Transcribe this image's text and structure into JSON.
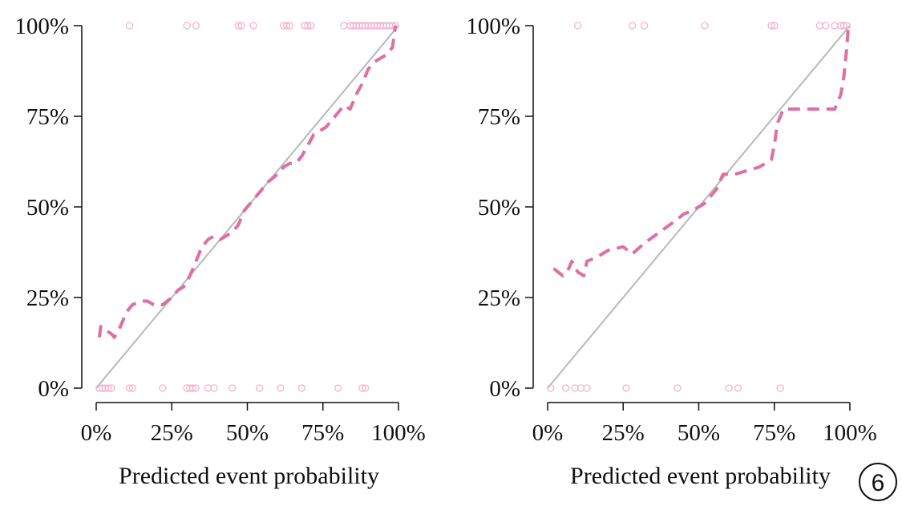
{
  "chart_data": [
    {
      "type": "line",
      "title": "",
      "xlabel": "Predicted event probability",
      "ylabel": "",
      "xlim": [
        0,
        100
      ],
      "ylim": [
        0,
        100
      ],
      "x_ticks": [
        "0%",
        "25%",
        "50%",
        "75%",
        "100%"
      ],
      "y_ticks": [
        "0%",
        "25%",
        "50%",
        "75%",
        "100%"
      ],
      "grid": false,
      "reference_line": [
        [
          0,
          0
        ],
        [
          100,
          100
        ]
      ],
      "series": [
        {
          "style": "dashed",
          "color": "#de6fa1",
          "x": [
            1,
            1.5,
            3,
            5,
            6,
            8,
            10,
            12,
            15,
            17,
            19,
            22,
            25,
            27,
            29,
            31,
            33,
            35,
            37,
            39,
            41,
            43,
            45,
            47,
            49,
            51,
            53,
            55,
            57,
            60,
            62,
            64,
            66,
            68,
            70,
            72,
            74,
            76,
            78,
            80,
            82,
            84,
            86,
            88,
            90,
            92,
            94,
            96,
            98,
            99
          ],
          "y": [
            14,
            17,
            16,
            15,
            14,
            17,
            21,
            23,
            24,
            24,
            23,
            23,
            25,
            27,
            28,
            31,
            35,
            39,
            41,
            42,
            41,
            42,
            43,
            45,
            49,
            51,
            53,
            55,
            57,
            59,
            61,
            62,
            62,
            64,
            67,
            70,
            71,
            72,
            74,
            76,
            78,
            77,
            81,
            84,
            88,
            90,
            91,
            92,
            94,
            100
          ]
        }
      ],
      "rug_color": "#f2b3cf",
      "rug_top_x": [
        11,
        30,
        33,
        47,
        48,
        52,
        62,
        63,
        64,
        69,
        70,
        71,
        82,
        84,
        85,
        86,
        87,
        88,
        89,
        90,
        91,
        92,
        93,
        94,
        95,
        96,
        97,
        98,
        99
      ],
      "rug_bottom_x": [
        1,
        2,
        3,
        4,
        5,
        11,
        12,
        22,
        30,
        31,
        32,
        33,
        37,
        39,
        45,
        54,
        61,
        68,
        80,
        88,
        89
      ]
    },
    {
      "type": "line",
      "title": "",
      "xlabel": "Predicted event probability",
      "ylabel": "",
      "xlim": [
        0,
        100
      ],
      "ylim": [
        0,
        100
      ],
      "x_ticks": [
        "0%",
        "25%",
        "50%",
        "75%",
        "100%"
      ],
      "y_ticks": [
        "0%",
        "25%",
        "50%",
        "75%",
        "100%"
      ],
      "grid": false,
      "reference_line": [
        [
          0,
          0
        ],
        [
          100,
          100
        ]
      ],
      "series": [
        {
          "style": "dashed",
          "color": "#de6fa1",
          "x": [
            2,
            5,
            7,
            8,
            10,
            12,
            13,
            16,
            20,
            25,
            28,
            32,
            37,
            42,
            45,
            48,
            52,
            56,
            58,
            62,
            66,
            70,
            74,
            75,
            76,
            78,
            82,
            86,
            90,
            93,
            95,
            97,
            98,
            99,
            99.5
          ],
          "y": [
            33,
            31,
            33,
            35,
            32,
            31,
            35,
            36,
            38,
            39,
            37,
            40,
            43,
            46,
            48,
            49,
            51,
            55,
            59,
            59,
            60,
            61,
            63,
            67,
            73,
            77,
            77,
            77,
            77,
            77,
            77,
            81,
            86,
            94,
            100
          ]
        }
      ],
      "rug_color": "#f2b3cf",
      "rug_top_x": [
        10,
        28,
        32,
        52,
        74,
        75,
        90,
        92,
        95,
        97,
        98,
        99
      ],
      "rug_bottom_x": [
        1,
        6,
        9,
        11,
        13,
        26,
        43,
        60,
        63,
        77
      ]
    }
  ],
  "badge": {
    "label": "6"
  }
}
